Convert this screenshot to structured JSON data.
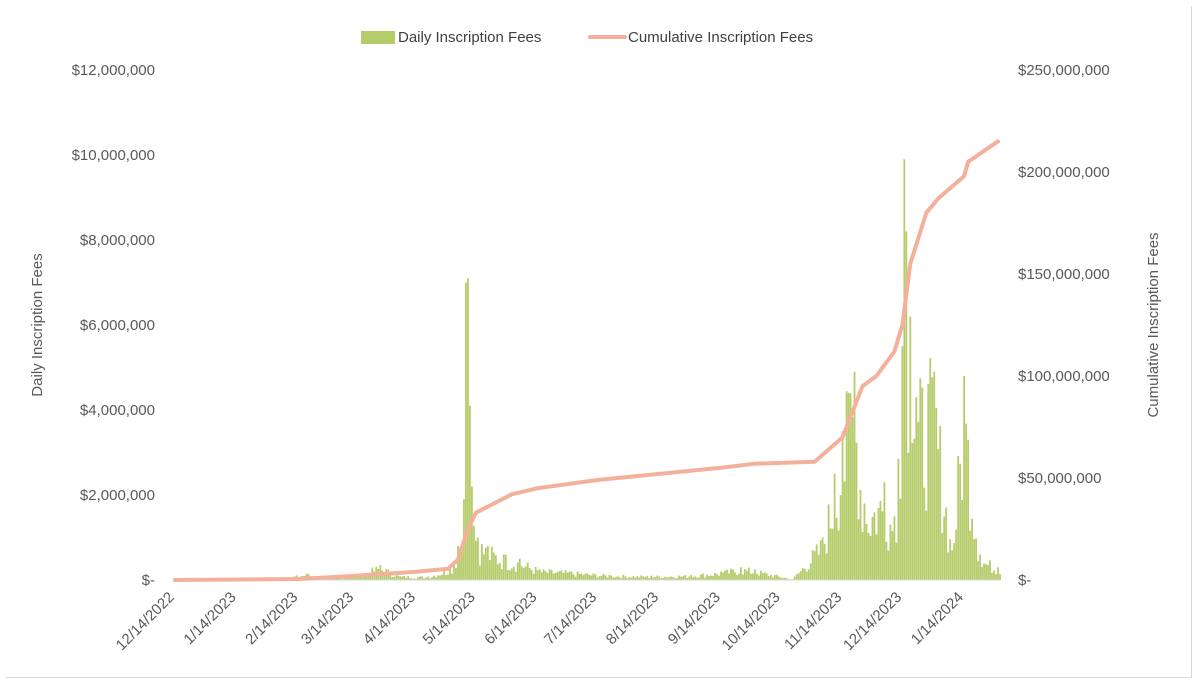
{
  "chart_data": {
    "type": "bar+line",
    "legend": [
      {
        "name": "Daily Inscription Fees",
        "kind": "bar",
        "color": "#b5cc6b"
      },
      {
        "name": "Cumulative Inscription Fees",
        "kind": "line",
        "color": "#f4b09a"
      }
    ],
    "legend_position": "top",
    "ylabel_left": "Daily Inscription Fees",
    "ylabel_right": "Cumulative Inscription Fees",
    "ylim_left": [
      0,
      12000000
    ],
    "ylim_right": [
      0,
      250000000
    ],
    "yticks_left": [
      "$12,000,000",
      "$10,000,000",
      "$8,000,000",
      "$6,000,000",
      "$4,000,000",
      "$2,000,000",
      "$-"
    ],
    "yticks_right": [
      "$250,000,000",
      "$200,000,000",
      "$150,000,000",
      "$100,000,000",
      "$50,000,000",
      "$-"
    ],
    "xticks": [
      "12/14/2022",
      "1/14/2023",
      "2/14/2023",
      "3/14/2023",
      "4/14/2023",
      "5/14/2023",
      "6/14/2023",
      "7/14/2023",
      "8/14/2023",
      "9/14/2023",
      "10/14/2023",
      "11/14/2023",
      "12/14/2023",
      "1/14/2024"
    ],
    "x_range": [
      "12/14/2022",
      "2/01/2024"
    ],
    "daily_fees_usd": [
      {
        "date": "2/05/2023",
        "value": 30000
      },
      {
        "date": "2/18/2023",
        "value": 150000
      },
      {
        "date": "3/01/2023",
        "value": 60000
      },
      {
        "date": "3/14/2023",
        "value": 80000
      },
      {
        "date": "3/27/2023",
        "value": 350000
      },
      {
        "date": "4/05/2023",
        "value": 100000
      },
      {
        "date": "4/20/2023",
        "value": 80000
      },
      {
        "date": "5/01/2023",
        "value": 300000
      },
      {
        "date": "5/05/2023",
        "value": 800000
      },
      {
        "date": "5/08/2023",
        "value": 1900000
      },
      {
        "date": "5/09/2023",
        "value": 7000000
      },
      {
        "date": "5/10/2023",
        "value": 7100000
      },
      {
        "date": "5/11/2023",
        "value": 4100000
      },
      {
        "date": "5/12/2023",
        "value": 2200000
      },
      {
        "date": "5/15/2023",
        "value": 1000000
      },
      {
        "date": "5/20/2023",
        "value": 800000
      },
      {
        "date": "5/28/2023",
        "value": 600000
      },
      {
        "date": "6/05/2023",
        "value": 500000
      },
      {
        "date": "6/15/2023",
        "value": 250000
      },
      {
        "date": "7/01/2023",
        "value": 200000
      },
      {
        "date": "7/20/2023",
        "value": 120000
      },
      {
        "date": "8/10/2023",
        "value": 100000
      },
      {
        "date": "8/30/2023",
        "value": 120000
      },
      {
        "date": "9/14/2023",
        "value": 200000
      },
      {
        "date": "9/24/2023",
        "value": 300000
      },
      {
        "date": "10/01/2023",
        "value": 250000
      },
      {
        "date": "10/20/2023",
        "value": 20000
      },
      {
        "date": "11/04/2023",
        "value": 1000000
      },
      {
        "date": "11/10/2023",
        "value": 2500000
      },
      {
        "date": "11/14/2023",
        "value": 3500000
      },
      {
        "date": "11/17/2023",
        "value": 4400000
      },
      {
        "date": "11/20/2023",
        "value": 4900000
      },
      {
        "date": "11/25/2023",
        "value": 1800000
      },
      {
        "date": "12/05/2023",
        "value": 2300000
      },
      {
        "date": "12/10/2023",
        "value": 1500000
      },
      {
        "date": "12/14/2023",
        "value": 5500000
      },
      {
        "date": "12/15/2023",
        "value": 9900000
      },
      {
        "date": "12/16/2023",
        "value": 8200000
      },
      {
        "date": "12/18/2023",
        "value": 6200000
      },
      {
        "date": "12/21/2023",
        "value": 4300000
      },
      {
        "date": "12/30/2023",
        "value": 4900000
      },
      {
        "date": "1/08/2024",
        "value": 700000
      },
      {
        "date": "1/14/2024",
        "value": 4800000
      },
      {
        "date": "1/22/2024",
        "value": 600000
      },
      {
        "date": "1/31/2024",
        "value": 300000
      }
    ],
    "cumulative_fees_usd": [
      {
        "date": "12/14/2022",
        "value": 0
      },
      {
        "date": "2/14/2023",
        "value": 500000
      },
      {
        "date": "3/14/2023",
        "value": 2000000
      },
      {
        "date": "4/14/2023",
        "value": 4000000
      },
      {
        "date": "4/30/2023",
        "value": 5500000
      },
      {
        "date": "5/05/2023",
        "value": 10000000
      },
      {
        "date": "5/10/2023",
        "value": 25000000
      },
      {
        "date": "5/14/2023",
        "value": 33000000
      },
      {
        "date": "6/01/2023",
        "value": 42000000
      },
      {
        "date": "6/14/2023",
        "value": 45000000
      },
      {
        "date": "7/14/2023",
        "value": 49000000
      },
      {
        "date": "8/14/2023",
        "value": 52000000
      },
      {
        "date": "9/14/2023",
        "value": 55000000
      },
      {
        "date": "10/01/2023",
        "value": 57000000
      },
      {
        "date": "10/31/2023",
        "value": 58000000
      },
      {
        "date": "11/14/2023",
        "value": 70000000
      },
      {
        "date": "11/24/2023",
        "value": 95000000
      },
      {
        "date": "12/01/2023",
        "value": 100000000
      },
      {
        "date": "12/10/2023",
        "value": 112000000
      },
      {
        "date": "12/14/2023",
        "value": 125000000
      },
      {
        "date": "12/18/2023",
        "value": 155000000
      },
      {
        "date": "12/26/2023",
        "value": 180000000
      },
      {
        "date": "1/01/2024",
        "value": 187000000
      },
      {
        "date": "1/14/2024",
        "value": 198000000
      },
      {
        "date": "1/16/2024",
        "value": 205000000
      },
      {
        "date": "1/31/2024",
        "value": 215000000
      }
    ]
  }
}
